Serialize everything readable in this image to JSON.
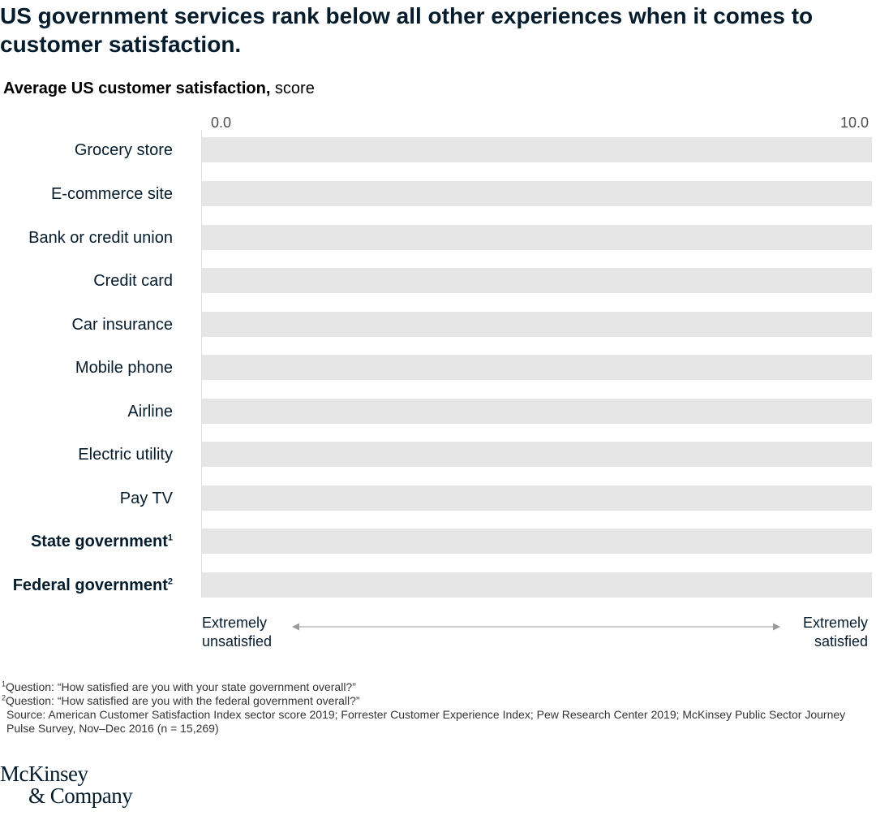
{
  "headline": "US government services rank below all other experiences when it comes to customer satisfaction.",
  "subtitle": {
    "bold": "Average US customer satisfaction,",
    "normal": " score"
  },
  "chart_data": {
    "type": "bar",
    "orientation": "horizontal",
    "title": "Average US customer satisfaction, score",
    "categories": [
      "Grocery store",
      "E-commerce site",
      "Bank or credit union",
      "Credit card",
      "Car insurance",
      "Mobile phone",
      "Airline",
      "Electric utility",
      "Pay TV",
      "State government",
      "Federal government"
    ],
    "footnote_marks": [
      "",
      "",
      "",
      "",
      "",
      "",
      "",
      "",
      "",
      "1",
      "2"
    ],
    "emphasized": [
      false,
      false,
      false,
      false,
      false,
      false,
      false,
      false,
      false,
      true,
      true
    ],
    "values": [
      0,
      0,
      0,
      0,
      0,
      0,
      0,
      0,
      0,
      0,
      0
    ],
    "xlim": [
      0,
      10
    ],
    "tick_labels": [
      "0.0",
      "10.0"
    ],
    "scale_left": [
      "Extremely",
      "unsatisfied"
    ],
    "scale_right": [
      "Extremely",
      "satisfied"
    ],
    "colors": {
      "track": "#e6e6e6",
      "bar": "#051c2c",
      "text": "#051c2c"
    }
  },
  "footnotes": {
    "n1_mark": "1",
    "n1": "Question: “How satisfied are you with your state government overall?”",
    "n2_mark": "2",
    "n2": "Question: “How satisfied are you with the federal government overall?”",
    "source": "Source: American Customer Satisfaction Index sector score 2019; Forrester Customer Experience Index; Pew Research Center 2019; McKinsey Public Sector Journey Pulse Survey, Nov–Dec 2016 (n = 15,269)"
  },
  "logo": {
    "line1": "McKinsey",
    "line2": "& Company"
  }
}
